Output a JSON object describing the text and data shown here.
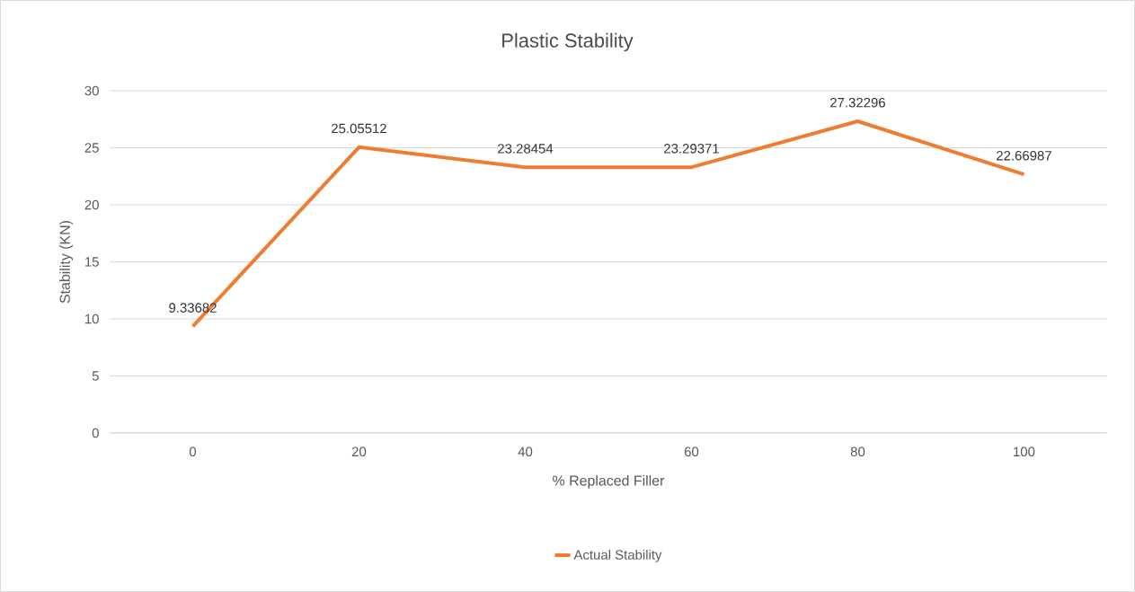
{
  "chart_data": {
    "type": "line",
    "title": "Plastic Stability",
    "xlabel": "% Replaced Filler",
    "ylabel": "Stability (KN)",
    "categories": [
      "0",
      "20",
      "40",
      "60",
      "80",
      "100"
    ],
    "series": [
      {
        "name": "Actual Stability",
        "color": "#ed7d31",
        "values": [
          9.33682,
          25.05512,
          23.28454,
          23.29371,
          27.32296,
          22.66987
        ]
      }
    ],
    "ylim": [
      0,
      30
    ],
    "yticks": [
      0,
      5,
      10,
      15,
      20,
      25,
      30
    ],
    "grid": "y",
    "legend": "bottom",
    "data_labels": true,
    "marker": "none",
    "line_style": "solid"
  }
}
